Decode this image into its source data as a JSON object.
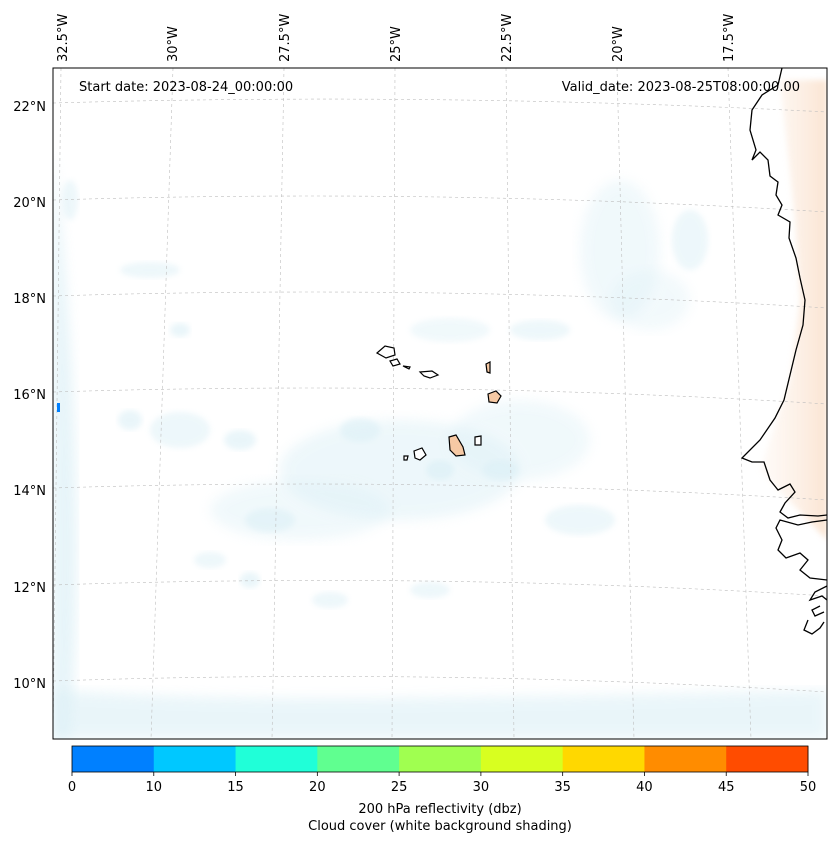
{
  "header": {
    "start_date": "Start date: 2023-08-24_00:00:00",
    "valid_date": "Valid_date: 2023-08-25T08:00:00.00"
  },
  "longitude_labels": [
    "32.5°W",
    "30°W",
    "27.5°W",
    "25°W",
    "22.5°W",
    "20°W",
    "17.5°W"
  ],
  "latitude_labels": [
    "22°N",
    "20°N",
    "18°N",
    "16°N",
    "14°N",
    "12°N",
    "10°N"
  ],
  "colorbar": {
    "ticks": [
      "0",
      "10",
      "15",
      "20",
      "25",
      "30",
      "35",
      "40",
      "45",
      "50"
    ],
    "colors": [
      "#0080ff",
      "#00c8ff",
      "#20ffd8",
      "#60ff90",
      "#a0ff50",
      "#d8ff20",
      "#ffd800",
      "#ff8c00",
      "#ff4c00"
    ],
    "label_line1": "200 hPa reflectivity (dbz)",
    "label_line2": "Cloud cover (white background shading)"
  },
  "colors": {
    "cloud": "#bfe3ef",
    "land_warm": "#f6c9a4",
    "coast": "#000000",
    "grid": "#bdbdbd"
  }
}
